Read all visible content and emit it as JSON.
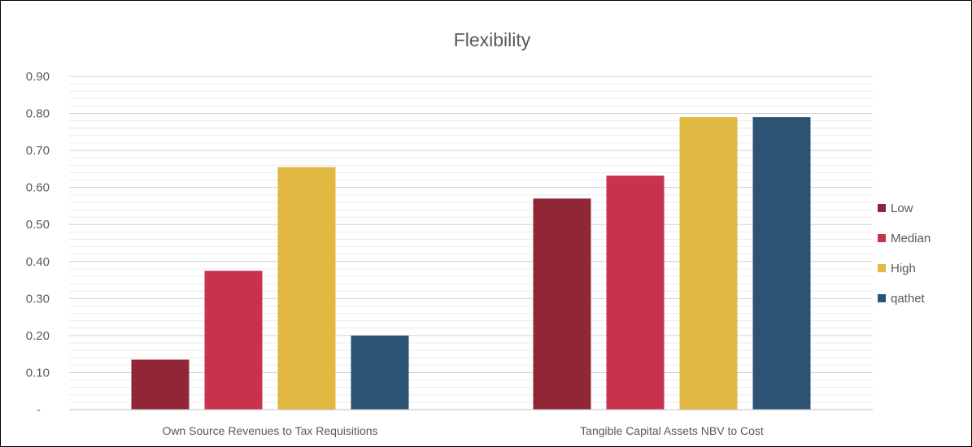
{
  "chart_data": {
    "type": "bar",
    "title": "Flexibility",
    "categories": [
      "Own Source Revenues to Tax Requisitions",
      "Tangible Capital Assets NBV to Cost"
    ],
    "series": [
      {
        "name": "Low",
        "values": [
          0.135,
          0.57
        ],
        "color": "#912736"
      },
      {
        "name": "Median",
        "values": [
          0.375,
          0.632
        ],
        "color": "#C7334C"
      },
      {
        "name": "High",
        "values": [
          0.655,
          0.79
        ],
        "color": "#E0B842"
      },
      {
        "name": "qathet",
        "values": [
          0.2,
          0.79
        ],
        "color": "#2C5274"
      }
    ],
    "y_ticks": [
      "-",
      "0.10",
      "0.20",
      "0.30",
      "0.40",
      "0.50",
      "0.60",
      "0.70",
      "0.80",
      "0.90"
    ],
    "ylim": [
      0,
      0.9
    ],
    "grid": true,
    "legend": "right"
  }
}
